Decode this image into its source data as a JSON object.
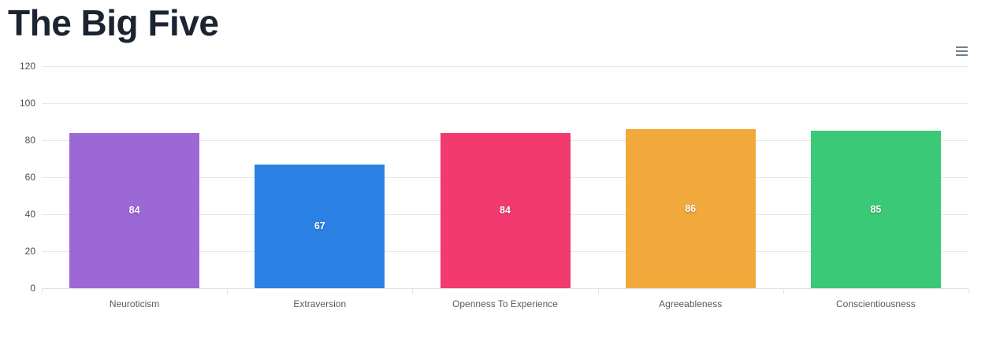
{
  "title": "The Big Five",
  "toolbar": {
    "menu_icon": "hamburger-menu-icon",
    "icon_color": "#6E8192"
  },
  "chart_data": {
    "type": "bar",
    "title": "The Big Five",
    "categories": [
      "Neuroticism",
      "Extraversion",
      "Openness To Experience",
      "Agreeableness",
      "Conscientiousness"
    ],
    "values": [
      84,
      67,
      84,
      86,
      85
    ],
    "data_labels": [
      "84",
      "67",
      "84",
      "86",
      "85"
    ],
    "colors": [
      "#9C68D6",
      "#2B82E4",
      "#F23A6F",
      "#F2A93C",
      "#3BC877"
    ],
    "xlabel": "",
    "ylabel": "",
    "ylim": [
      0,
      120
    ],
    "yticks": [
      0,
      20,
      40,
      60,
      80,
      100,
      120
    ],
    "grid": true,
    "legend": "none",
    "data_label_color": "#ffffff",
    "data_label_position": "center"
  }
}
